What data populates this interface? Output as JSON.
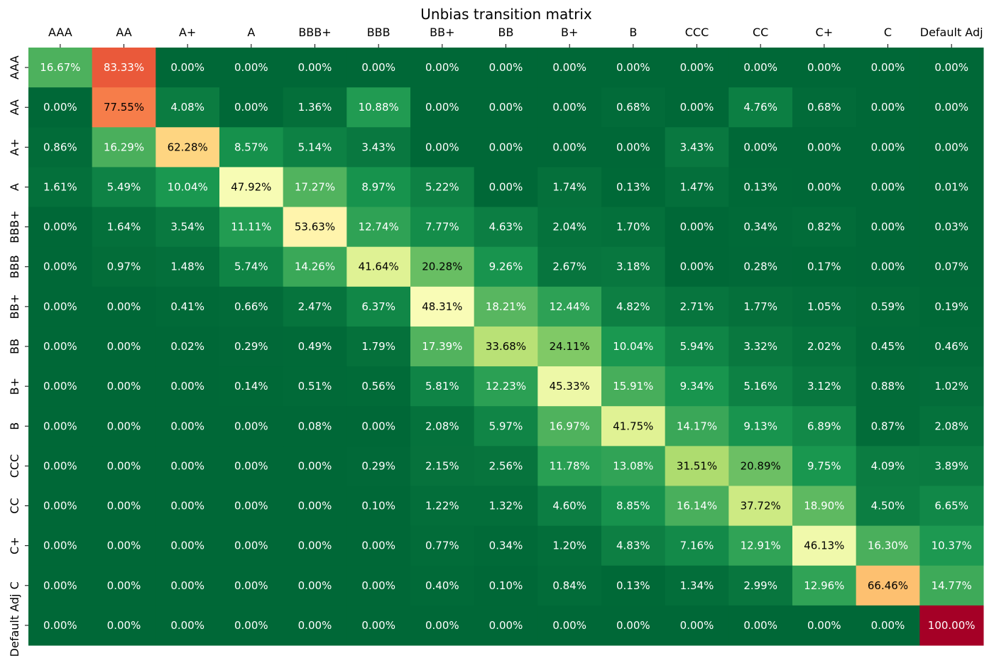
{
  "chart_data": {
    "type": "heatmap",
    "title": "Unbias transition matrix",
    "x_labels": [
      "AAA",
      "AA",
      "A+",
      "A",
      "BBB+",
      "BBB",
      "BB+",
      "BB",
      "B+",
      "B",
      "CCC",
      "CC",
      "C+",
      "C",
      "Default Adj"
    ],
    "y_labels": [
      "AAA",
      "AA",
      "A+",
      "A",
      "BBB+",
      "BBB",
      "BB+",
      "BB",
      "B+",
      "B",
      "CCC",
      "CC",
      "C+",
      "C",
      "Default Adj"
    ],
    "x_axis_position": "top",
    "values": [
      [
        16.67,
        83.33,
        0.0,
        0.0,
        0.0,
        0.0,
        0.0,
        0.0,
        0.0,
        0.0,
        0.0,
        0.0,
        0.0,
        0.0,
        0.0
      ],
      [
        0.0,
        77.55,
        4.08,
        0.0,
        1.36,
        10.88,
        0.0,
        0.0,
        0.0,
        0.68,
        0.0,
        4.76,
        0.68,
        0.0,
        0.0
      ],
      [
        0.86,
        16.29,
        62.28,
        8.57,
        5.14,
        3.43,
        0.0,
        0.0,
        0.0,
        0.0,
        3.43,
        0.0,
        0.0,
        0.0,
        0.0
      ],
      [
        1.61,
        5.49,
        10.04,
        47.92,
        17.27,
        8.97,
        5.22,
        0.0,
        1.74,
        0.13,
        1.47,
        0.13,
        0.0,
        0.0,
        0.01
      ],
      [
        0.0,
        1.64,
        3.54,
        11.11,
        53.63,
        12.74,
        7.77,
        4.63,
        2.04,
        1.7,
        0.0,
        0.34,
        0.82,
        0.0,
        0.03
      ],
      [
        0.0,
        0.97,
        1.48,
        5.74,
        14.26,
        41.64,
        20.28,
        9.26,
        2.67,
        3.18,
        0.0,
        0.28,
        0.17,
        0.0,
        0.07
      ],
      [
        0.0,
        0.0,
        0.41,
        0.66,
        2.47,
        6.37,
        48.31,
        18.21,
        12.44,
        4.82,
        2.71,
        1.77,
        1.05,
        0.59,
        0.19
      ],
      [
        0.0,
        0.0,
        0.02,
        0.29,
        0.49,
        1.79,
        17.39,
        33.68,
        24.11,
        10.04,
        5.94,
        3.32,
        2.02,
        0.45,
        0.46
      ],
      [
        0.0,
        0.0,
        0.0,
        0.14,
        0.51,
        0.56,
        5.81,
        12.23,
        45.33,
        15.91,
        9.34,
        5.16,
        3.12,
        0.88,
        1.02
      ],
      [
        0.0,
        0.0,
        0.0,
        0.0,
        0.08,
        0.0,
        2.08,
        5.97,
        16.97,
        41.75,
        14.17,
        9.13,
        6.89,
        0.87,
        2.08
      ],
      [
        0.0,
        0.0,
        0.0,
        0.0,
        0.0,
        0.29,
        2.15,
        2.56,
        11.78,
        13.08,
        31.51,
        20.89,
        9.75,
        4.09,
        3.89
      ],
      [
        0.0,
        0.0,
        0.0,
        0.0,
        0.0,
        0.1,
        1.22,
        1.32,
        4.6,
        8.85,
        16.14,
        37.72,
        18.9,
        4.5,
        6.65
      ],
      [
        0.0,
        0.0,
        0.0,
        0.0,
        0.0,
        0.0,
        0.77,
        0.34,
        1.2,
        4.83,
        7.16,
        12.91,
        46.13,
        16.3,
        10.37
      ],
      [
        0.0,
        0.0,
        0.0,
        0.0,
        0.0,
        0.0,
        0.4,
        0.1,
        0.84,
        0.13,
        1.34,
        2.99,
        12.96,
        66.46,
        14.77
      ],
      [
        0.0,
        0.0,
        0.0,
        0.0,
        0.0,
        0.0,
        0.0,
        0.0,
        0.0,
        0.0,
        0.0,
        0.0,
        0.0,
        0.0,
        100.0
      ]
    ],
    "value_format": "percent_2dp",
    "colormap": "RdYlGn_r",
    "vmin": 0,
    "vmax": 100,
    "colorbar": false,
    "grid": false,
    "colors": {
      "low": "#006837",
      "mid": "#ffffbf",
      "high": "#a50026"
    }
  }
}
